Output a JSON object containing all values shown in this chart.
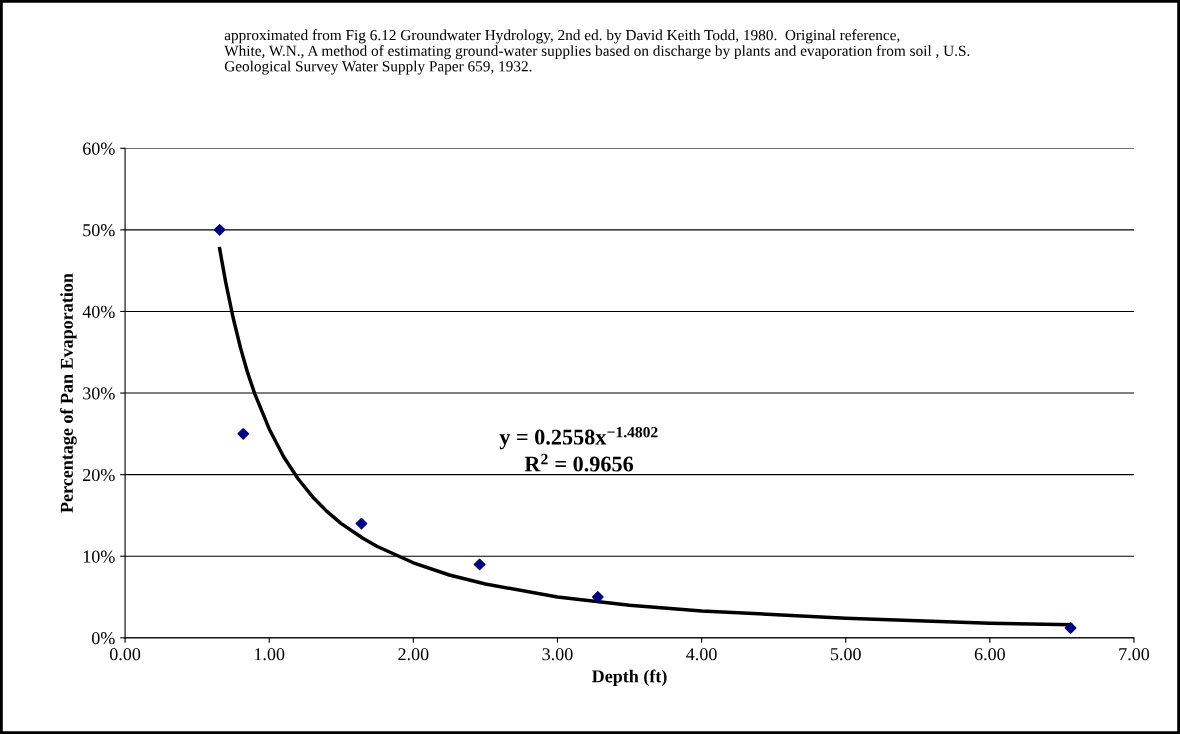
{
  "chart_data": {
    "type": "scatter",
    "xlabel": "Depth (ft)",
    "ylabel": "Percentage of Pan Evaporation",
    "annotations": [
      "approximated from Fig 6.12 Groundwater Hydrology, 2nd ed. by David Keith Todd, 1980.  Original reference,\nWhite, W.N., A method of estimating ground-water supplies based on discharge by plants and evaporation from soil , U.S.\nGeological Survey Water Supply Paper 659, 1932.",
      "y = 0.2558x$^{−1.4802}$",
      "R$^{2}$ = 0.9656"
    ],
    "series": [
      {
        "color": "#000080",
        "marker": "diamond",
        "x": [
          0.656,
          0.82,
          1.64,
          2.46,
          3.28,
          6.56
        ],
        "values": [
          50,
          25,
          14,
          9,
          5,
          1.2
        ]
      },
      {
        "type": "line",
        "color": "#000000",
        "line_style": "solid",
        "x": [
          0.656,
          0.7,
          0.75,
          0.8,
          0.85,
          0.9,
          1.0,
          1.1,
          1.2,
          1.3,
          1.4,
          1.5,
          1.65,
          1.75,
          2.0,
          2.25,
          2.5,
          3.0,
          3.5,
          4.0,
          5.0,
          6.0,
          6.56
        ],
        "values": [
          47.7,
          43.4,
          39.2,
          35.6,
          32.5,
          29.9,
          25.6,
          22.2,
          19.5,
          17.3,
          15.5,
          14.0,
          12.2,
          11.2,
          9.2,
          7.7,
          6.6,
          5.0,
          4.0,
          3.3,
          2.4,
          1.8,
          1.6
        ]
      }
    ],
    "xlim": [
      0,
      7
    ],
    "xticks": [
      {
        "value": 0,
        "label": "0.00"
      },
      {
        "value": 1,
        "label": "1.00"
      },
      {
        "value": 2,
        "label": "2.00"
      },
      {
        "value": 3,
        "label": "3.00"
      },
      {
        "value": 4,
        "label": "4.00"
      },
      {
        "value": 5,
        "label": "5.00"
      },
      {
        "value": 6,
        "label": "6.00"
      },
      {
        "value": 7,
        "label": "7.00"
      }
    ],
    "ylim": [
      0,
      60
    ],
    "yticks": [
      {
        "value": 0,
        "label": "0%"
      },
      {
        "value": 10,
        "label": "10%"
      },
      {
        "value": 20,
        "label": "20%"
      },
      {
        "value": 30,
        "label": "30%"
      },
      {
        "value": 40,
        "label": "40%"
      },
      {
        "value": 50,
        "label": "50%"
      },
      {
        "value": 60,
        "label": "60%"
      }
    ],
    "grid": "y"
  }
}
